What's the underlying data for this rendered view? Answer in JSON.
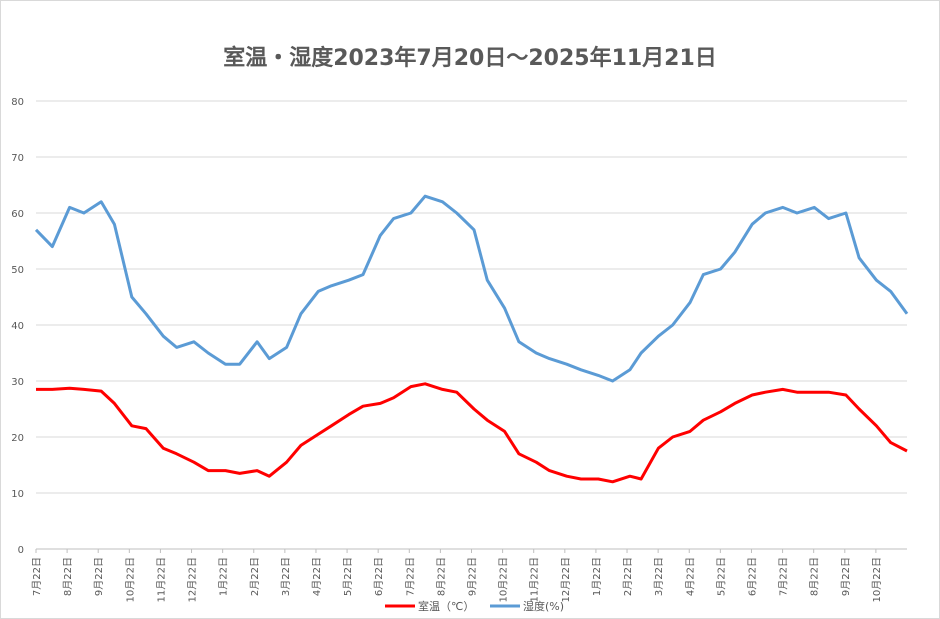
{
  "chart_data": {
    "type": "line",
    "title": "室温・湿度2023年7月20日～2025年11月21日",
    "ylim": [
      0,
      80
    ],
    "yticks": [
      0,
      10,
      20,
      30,
      40,
      50,
      60,
      70,
      80
    ],
    "grid": true,
    "legend": "bottom",
    "x_tick_labels": [
      "7月22日",
      "8月22日",
      "9月22日",
      "10月22日",
      "11月22日",
      "12月22日",
      "1月22日",
      "2月22日",
      "3月22日",
      "4月22日",
      "5月22日",
      "6月22日",
      "7月22日",
      "8月22日",
      "9月22日",
      "10月22日",
      "11月22日",
      "12月22日",
      "1月22日",
      "2月22日",
      "3月22日",
      "4月22日",
      "5月22日",
      "6月22日",
      "7月22日",
      "8月22日",
      "9月22日",
      "10月22日"
    ],
    "x": [
      "2023-07-20",
      "2023-08-05",
      "2023-08-22",
      "2023-09-05",
      "2023-09-22",
      "2023-10-05",
      "2023-10-22",
      "2023-11-05",
      "2023-11-22",
      "2023-12-05",
      "2023-12-22",
      "2024-01-05",
      "2024-01-22",
      "2024-02-05",
      "2024-02-22",
      "2024-03-05",
      "2024-03-22",
      "2024-04-05",
      "2024-04-22",
      "2024-05-05",
      "2024-05-22",
      "2024-06-05",
      "2024-06-22",
      "2024-07-05",
      "2024-07-22",
      "2024-08-05",
      "2024-08-22",
      "2024-09-05",
      "2024-09-22",
      "2024-10-05",
      "2024-10-22",
      "2024-11-05",
      "2024-11-22",
      "2024-12-05",
      "2024-12-22",
      "2025-01-05",
      "2025-01-22",
      "2025-02-05",
      "2025-02-22",
      "2025-03-05",
      "2025-03-22",
      "2025-04-05",
      "2025-04-22",
      "2025-05-05",
      "2025-05-22",
      "2025-06-05",
      "2025-06-22",
      "2025-07-05",
      "2025-07-22",
      "2025-08-05",
      "2025-08-22",
      "2025-09-05",
      "2025-09-22",
      "2025-10-05",
      "2025-10-22",
      "2025-11-05",
      "2025-11-21"
    ],
    "series": [
      {
        "name": "室温（℃）",
        "color": "#ff0000",
        "values": [
          28.5,
          28.5,
          28.7,
          28.5,
          28.2,
          26,
          22,
          21.5,
          18,
          17,
          15.5,
          14,
          14,
          13.5,
          14,
          13,
          15.5,
          18.5,
          20.5,
          22,
          24,
          25.5,
          26,
          27,
          29,
          29.5,
          28.5,
          28,
          25,
          23,
          21,
          17,
          15.5,
          14,
          13,
          12.5,
          12.5,
          12,
          13,
          12.5,
          18,
          20,
          21,
          23,
          24.5,
          26,
          27.5,
          28,
          28.5,
          28,
          28,
          28,
          27.5,
          25,
          22,
          19,
          17.5
        ]
      },
      {
        "name": "湿度(%)",
        "color": "#5b9bd5",
        "values": [
          57,
          54,
          61,
          60,
          62,
          58,
          45,
          42,
          38,
          36,
          37,
          35,
          33,
          33,
          37,
          34,
          36,
          42,
          46,
          47,
          48,
          49,
          56,
          59,
          60,
          63,
          62,
          60,
          57,
          48,
          43,
          37,
          35,
          34,
          33,
          32,
          31,
          30,
          32,
          35,
          38,
          40,
          44,
          49,
          50,
          53,
          58,
          60,
          61,
          60,
          61,
          59,
          60,
          52,
          48,
          46,
          42
        ]
      }
    ]
  }
}
